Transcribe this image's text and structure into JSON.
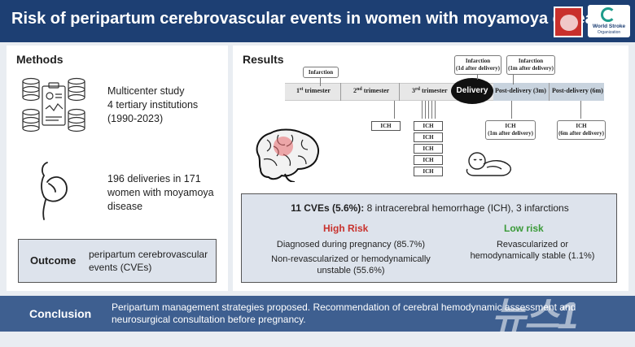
{
  "header": {
    "title": "Risk of peripartum cerebrovascular events in women with moyamoya disease",
    "logo_line1": "World Stroke",
    "logo_line2": "Organization"
  },
  "methods": {
    "title": "Methods",
    "study_lines": [
      "Multicenter study",
      "4 tertiary institutions",
      "(1990-2023)"
    ],
    "cohort_lines": [
      "196 deliveries in 171",
      "women with moyamoya",
      "disease"
    ],
    "outcome_label": "Outcome",
    "outcome_value": "peripartum cerebrovascular events (CVEs)"
  },
  "results": {
    "title": "Results",
    "timeline": {
      "t1": {
        "num": "1",
        "sup": "st",
        "rest": " trimester"
      },
      "t2": {
        "num": "2",
        "sup": "nd",
        "rest": " trimester"
      },
      "t3": {
        "num": "3",
        "sup": "rd",
        "rest": " trimester"
      },
      "delivery": "Delivery",
      "pd3": "Post-delivery (3m)",
      "pd6": "Post-delivery (6m)"
    },
    "events": {
      "infarction_top": "Infarction",
      "infarction_1d": [
        "Infarction",
        "(1d after delivery)"
      ],
      "infarction_1m": [
        "Infarction",
        "(1m after delivery)"
      ],
      "ich": "ICH",
      "ich_1m": [
        "ICH",
        "(1m after delivery)"
      ],
      "ich_6m": [
        "ICH",
        "(6m after delivery)"
      ]
    },
    "summary": {
      "head_bold": "11 CVEs (5.6%):",
      "head_rest": " 8 intracerebral hemorrhage (ICH), 3 infarctions",
      "high_title": "High Risk",
      "high_1": "Diagnosed during pregnancy (85.7%)",
      "high_2": [
        "Non-revascularized or hemodynamically",
        "unstable (55.6%)"
      ],
      "low_title": "Low risk",
      "low_1": [
        "Revascularized or",
        "hemodynamically stable (1.1%)"
      ]
    }
  },
  "conclusion": {
    "label": "Conclusion",
    "text": "Peripartum management strategies proposed. Recommendation of cerebral hemodynamic assessment and neurosurgical consultation before pregnancy."
  },
  "watermark": "뉴스1",
  "colors": {
    "header": "#1d3f73",
    "high_risk": "#c8312c",
    "low_risk": "#3a9a38",
    "conclusion": "#3e5f90"
  }
}
